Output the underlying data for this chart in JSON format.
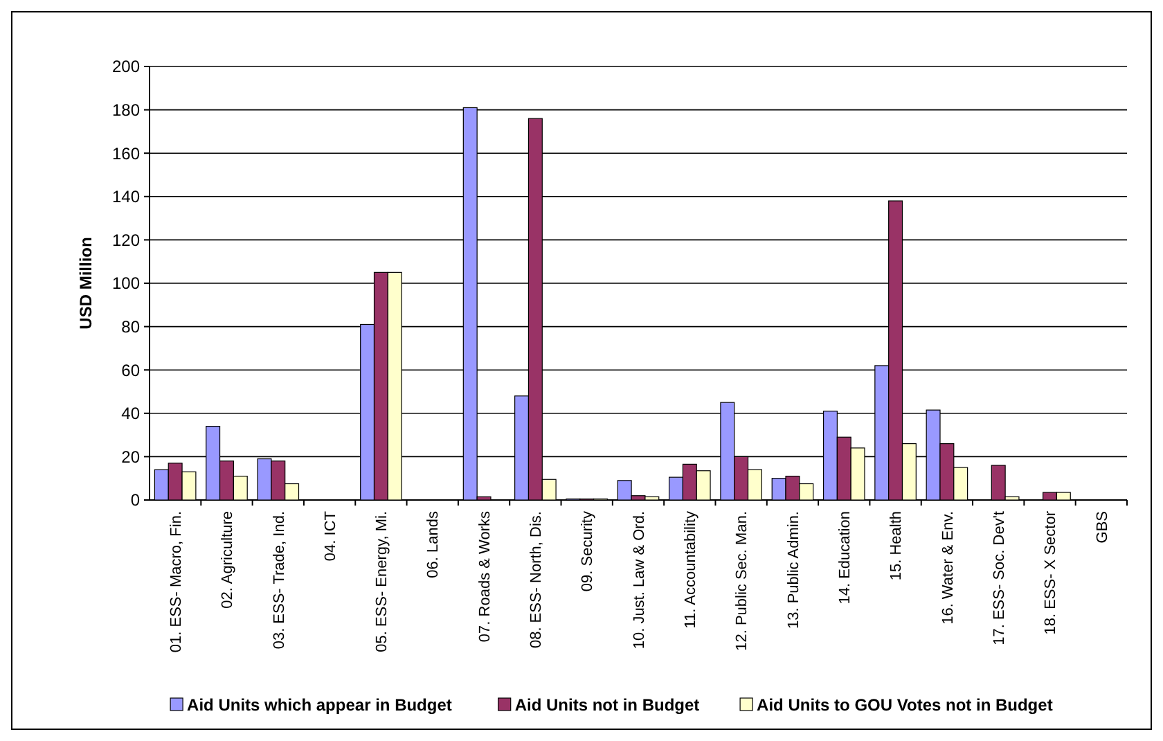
{
  "chart_data": {
    "type": "bar",
    "ylabel": "USD Million",
    "categories": [
      "01. ESS- Macro, Fin.",
      "02. Agriculture",
      "03. ESS- Trade, Ind.",
      "04. ICT",
      "05. ESS- Energy, Mi.",
      "06. Lands",
      "07. Roads & Works",
      "08. ESS- North, Dis.",
      "09. Security",
      "10. Just. Law & Ord.",
      "11. Accountability",
      "12. Public Sec. Man.",
      "13. Public Admin.",
      "14. Education",
      "15. Health",
      "16. Water & Env.",
      "17. ESS- Soc. Dev't",
      "18. ESS- X Sector",
      "GBS"
    ],
    "series": [
      {
        "name": "Aid Units which appear in Budget",
        "color": "#9999ff",
        "values": [
          14,
          34,
          19,
          0,
          81,
          0,
          181,
          48,
          0.5,
          9,
          10.5,
          45,
          10,
          41,
          62,
          41.5,
          0,
          0,
          0
        ]
      },
      {
        "name": "Aid Units not in Budget",
        "color": "#993366",
        "values": [
          17,
          18,
          18,
          0,
          105,
          0,
          1.5,
          176,
          0.5,
          2,
          16.5,
          20,
          11,
          29,
          138,
          26,
          16,
          3.5,
          0
        ]
      },
      {
        "name": "Aid Units to GOU Votes not in Budget",
        "color": "#ffffcc",
        "values": [
          13,
          11,
          7.5,
          0,
          105,
          0,
          0,
          9.5,
          0.5,
          1.5,
          13.5,
          14,
          7.5,
          24,
          26,
          15,
          1.5,
          3.5,
          0
        ]
      }
    ],
    "ylim": [
      0,
      200
    ],
    "yticks": [
      0,
      20,
      40,
      60,
      80,
      100,
      120,
      140,
      160,
      180,
      200
    ],
    "grid": "y",
    "legend": "bottom"
  }
}
